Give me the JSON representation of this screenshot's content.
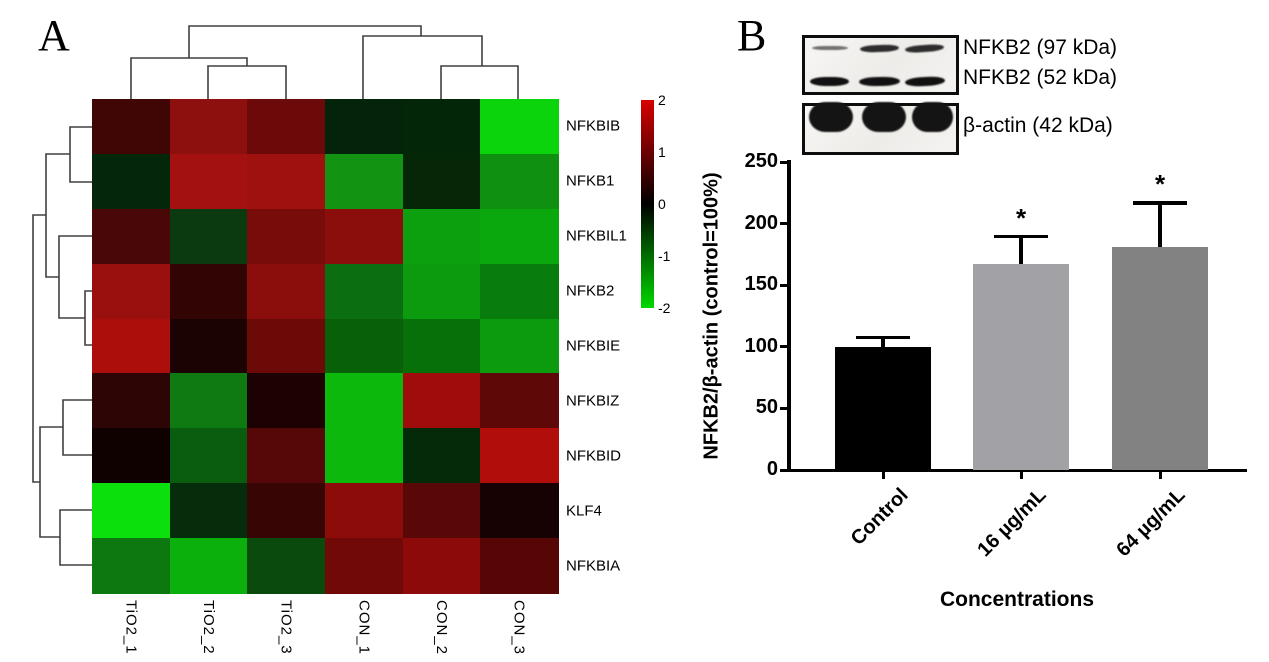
{
  "panel_a": {
    "label": "A"
  },
  "panel_b": {
    "label": "B",
    "blot": {
      "bands": [
        {
          "label": "NFKB2 (97 kDa)",
          "lane_intensities": [
            "faint",
            "medium",
            "medium"
          ]
        },
        {
          "label": "NFKB2 (52 kDa)",
          "lane_intensities": [
            "dark",
            "dark",
            "dark"
          ]
        },
        {
          "label": "β-actin (42 kDa)",
          "lane_intensities": [
            "blob",
            "blob",
            "blob"
          ]
        }
      ]
    }
  },
  "chart_data": [
    {
      "type": "heatmap",
      "title": "",
      "rows": [
        "NFKBIB",
        "NFKB1",
        "NFKBIL1",
        "NFKB2",
        "NFKBIE",
        "NFKBIZ",
        "NFKBID",
        "KLF4",
        "NFKBIA"
      ],
      "columns": [
        "TiO2_1",
        "TiO2_2",
        "TiO2_3",
        "CON_1",
        "CON_2",
        "CON_3"
      ],
      "values_z": [
        [
          0.5,
          1.3,
          0.9,
          -0.3,
          -0.3,
          -1.9
        ],
        [
          -0.3,
          1.5,
          1.4,
          -1.3,
          -0.4,
          -1.3
        ],
        [
          0.7,
          -0.5,
          1.1,
          1.3,
          -1.4,
          -1.5
        ],
        [
          1.4,
          0.5,
          1.3,
          -1.0,
          -1.4,
          -1.1
        ],
        [
          1.5,
          0.3,
          1.0,
          -0.8,
          -1.0,
          -1.3
        ],
        [
          0.4,
          -1.1,
          0.3,
          -1.6,
          1.4,
          0.8
        ],
        [
          0.1,
          -0.8,
          0.8,
          -1.6,
          -0.4,
          1.6
        ],
        [
          -2.0,
          -0.4,
          0.5,
          1.3,
          0.8,
          0.2
        ],
        [
          -1.1,
          -1.6,
          -0.7,
          1.0,
          1.3,
          0.8
        ]
      ],
      "cell_colors": [
        [
          "#400606",
          "#8e100e",
          "#6b0a09",
          "#03240b",
          "#042608",
          "#0cd40c"
        ],
        [
          "#04260b",
          "#a31210",
          "#9e110f",
          "#129312",
          "#052708",
          "#0f9010"
        ],
        [
          "#4a0707",
          "#0c3a10",
          "#780c0a",
          "#8c0e0c",
          "#0ca00e",
          "#0aa80c"
        ],
        [
          "#9a100e",
          "#330404",
          "#8c0e0c",
          "#0b6e10",
          "#0c9a0e",
          "#087c0c"
        ],
        [
          "#ac0e0c",
          "#1c0303",
          "#6c0a08",
          "#086009",
          "#087008",
          "#0c9a0e"
        ],
        [
          "#2e0505",
          "#0e7a11",
          "#1c0202",
          "#0cb80c",
          "#a00c0b",
          "#5e0807"
        ],
        [
          "#100101",
          "#0a5c0e",
          "#560707",
          "#0cb80c",
          "#052a0a",
          "#b00d0b"
        ],
        [
          "#0ce00c",
          "#062c0c",
          "#380505",
          "#8c0c0a",
          "#5a0707",
          "#160202"
        ],
        [
          "#0c780f",
          "#0cb00c",
          "#0a4a0c",
          "#700908",
          "#8c0b0a",
          "#570606"
        ]
      ],
      "colorbar": {
        "min": -2,
        "max": 2,
        "ticks": [
          "2",
          "1",
          "0",
          "-1",
          "-2"
        ],
        "top_color": "#d80000",
        "mid_color": "#000000",
        "bottom_color": "#00d800"
      },
      "col_dendrogram": "((TiO2_1,(TiO2_2,TiO2_3)),(CON_1,(CON_2,CON_3)))",
      "row_dendrogram": "(((NFKBIB,NFKB1),(NFKBIL1,(NFKB2,NFKBIE))),((NFKBIZ,NFKBID),(KLF4,NFKBIA)))"
    },
    {
      "type": "bar",
      "categories": [
        "Control",
        "16 µg/mL",
        "64 µg/mL"
      ],
      "values": [
        100,
        167,
        181
      ],
      "errors_up": [
        9,
        24,
        37
      ],
      "significance": [
        "",
        "*",
        "*"
      ],
      "bar_colors": [
        "#000000",
        "#a2a2a6",
        "#828282"
      ],
      "ylabel": "NFKB2/β-actin (control=100%)",
      "xlabel": "Concentrations",
      "ylim": [
        0,
        250
      ],
      "yticks": [
        0,
        50,
        100,
        150,
        200,
        250
      ],
      "legend": "none",
      "grid": false
    }
  ]
}
